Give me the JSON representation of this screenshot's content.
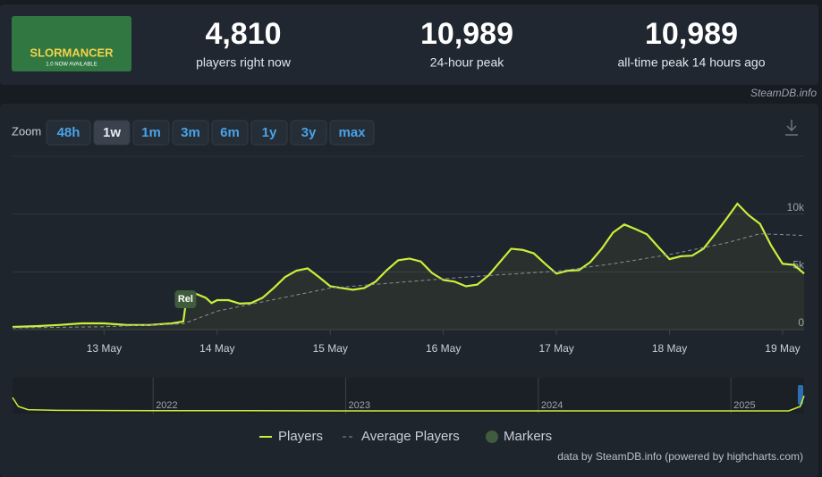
{
  "header": {
    "game_image_title": "SLORMANCER",
    "game_image_subtitle": "1.0 NOW AVAILABLE",
    "stats": [
      {
        "value": "4,810",
        "label": "players right now"
      },
      {
        "value": "10,989",
        "label": "24-hour peak"
      },
      {
        "value": "10,989",
        "label": "all-time peak 14 hours ago"
      }
    ],
    "site": "SteamDB.info"
  },
  "zoom": {
    "label": "Zoom",
    "options": [
      "48h",
      "1w",
      "1m",
      "3m",
      "6m",
      "1y",
      "3y",
      "max"
    ],
    "selected_index": 1
  },
  "chart_data": {
    "type": "line",
    "x": [
      12.19,
      12.4,
      12.6,
      12.8,
      13.0,
      13.2,
      13.4,
      13.6,
      13.7,
      13.72,
      13.8,
      13.9,
      13.95,
      14.0,
      14.1,
      14.2,
      14.3,
      14.4,
      14.5,
      14.6,
      14.7,
      14.8,
      14.9,
      15.0,
      15.1,
      15.2,
      15.3,
      15.4,
      15.5,
      15.6,
      15.7,
      15.8,
      15.9,
      16.0,
      16.1,
      16.2,
      16.3,
      16.4,
      16.5,
      16.6,
      16.7,
      16.8,
      16.9,
      17.0,
      17.1,
      17.2,
      17.3,
      17.4,
      17.5,
      17.6,
      17.7,
      17.8,
      17.9,
      18.0,
      18.1,
      18.2,
      18.3,
      18.4,
      18.5,
      18.6,
      18.7,
      18.8,
      18.9,
      19.0,
      19.1,
      19.19
    ],
    "xlim": [
      12.19,
      19.19
    ],
    "xticks": [
      {
        "value": 13,
        "label": "13 May"
      },
      {
        "value": 14,
        "label": "14 May"
      },
      {
        "value": 15,
        "label": "15 May"
      },
      {
        "value": 16,
        "label": "16 May"
      },
      {
        "value": 17,
        "label": "17 May"
      },
      {
        "value": 18,
        "label": "18 May"
      },
      {
        "value": 19,
        "label": "19 May"
      }
    ],
    "ylim": [
      0,
      15000
    ],
    "yticks": [
      0,
      {
        "value": 5000,
        "label": "5k"
      },
      {
        "value": 10000,
        "label": "10k"
      }
    ],
    "grid": true,
    "series": [
      {
        "name": "Players",
        "color": "#c8f03a",
        "values": [
          230,
          300,
          400,
          540,
          540,
          400,
          400,
          540,
          700,
          2100,
          3150,
          2750,
          2300,
          2550,
          2550,
          2250,
          2300,
          2750,
          3600,
          4550,
          5100,
          5300,
          4550,
          3750,
          3600,
          3450,
          3600,
          4150,
          5150,
          6000,
          6150,
          5900,
          4900,
          4300,
          4150,
          3750,
          3900,
          4700,
          5850,
          7000,
          6900,
          6600,
          5700,
          4850,
          5100,
          5150,
          5850,
          7000,
          8400,
          9100,
          8700,
          8250,
          7150,
          6100,
          6350,
          6400,
          7000,
          8250,
          9550,
          10900,
          9900,
          9150,
          7250,
          5700,
          5600,
          4850
        ]
      },
      {
        "name": "Average Players",
        "color": "#8a9099",
        "dashed": true,
        "x": [
          12.19,
          13.0,
          13.7,
          14.0,
          14.5,
          15.0,
          15.5,
          16.0,
          16.5,
          17.0,
          17.5,
          18.0,
          18.5,
          18.8,
          19.19
        ],
        "values": [
          150,
          250,
          500,
          1600,
          2600,
          3600,
          4000,
          4400,
          4750,
          5050,
          5700,
          6500,
          7500,
          8300,
          8150
        ]
      }
    ],
    "markers": {
      "name": "Markers",
      "color": "#3f5c3c",
      "points": [
        {
          "x": 13.72,
          "label": "Rel"
        }
      ]
    },
    "navigator": {
      "xlim": [
        2021.27,
        2025.38
      ],
      "xticks": [
        2022,
        2023,
        2024,
        2025
      ],
      "ylim": [
        0,
        5000
      ],
      "x": [
        2021.27,
        2021.3,
        2021.35,
        2021.5,
        2022.0,
        2022.5,
        2023.0,
        2023.5,
        2024.0,
        2024.5,
        2025.0,
        2025.3,
        2025.36,
        2025.38
      ],
      "values": [
        4000,
        1500,
        600,
        400,
        300,
        300,
        250,
        250,
        250,
        250,
        250,
        250,
        1500,
        4500
      ]
    },
    "credits": "data by SteamDB.info (powered by highcharts.com)"
  }
}
